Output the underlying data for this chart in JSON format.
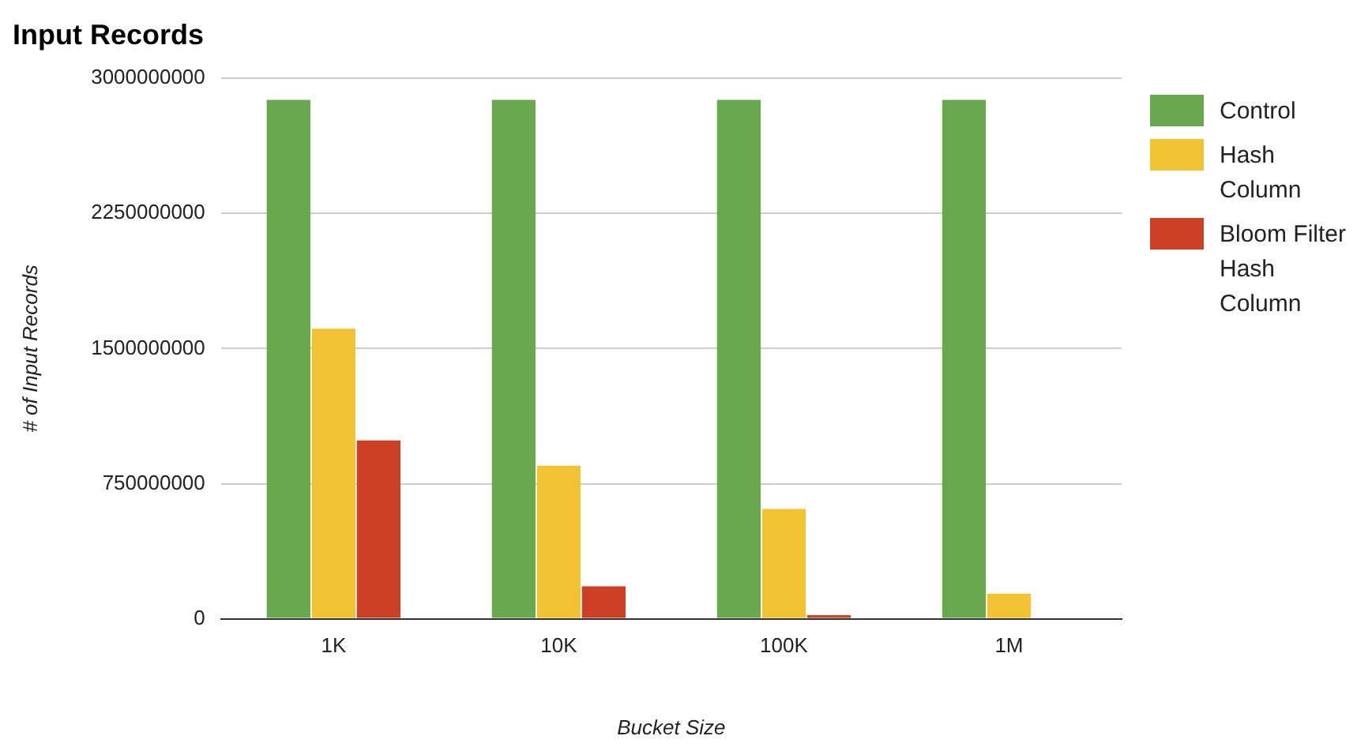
{
  "chart_data": {
    "type": "bar",
    "title": "Input Records",
    "xlabel": "Bucket Size",
    "ylabel": "# of Input Records",
    "categories": [
      "1K",
      "10K",
      "100K",
      "1M"
    ],
    "series": [
      {
        "name": "Control",
        "color": "#6aa84f",
        "values": [
          2880000000,
          2880000000,
          2880000000,
          2880000000
        ]
      },
      {
        "name": "Hash Column",
        "color": "#f1c232",
        "values": [
          1610000000,
          850000000,
          610000000,
          140000000
        ]
      },
      {
        "name": "Bloom Filter Hash Column",
        "color": "#cc4125",
        "values": [
          990000000,
          180000000,
          20000000,
          0
        ]
      }
    ],
    "ylim": [
      0,
      3000000000
    ],
    "yticks": [
      0,
      750000000,
      1500000000,
      2250000000,
      3000000000
    ],
    "grid": "y",
    "legend": "right"
  }
}
